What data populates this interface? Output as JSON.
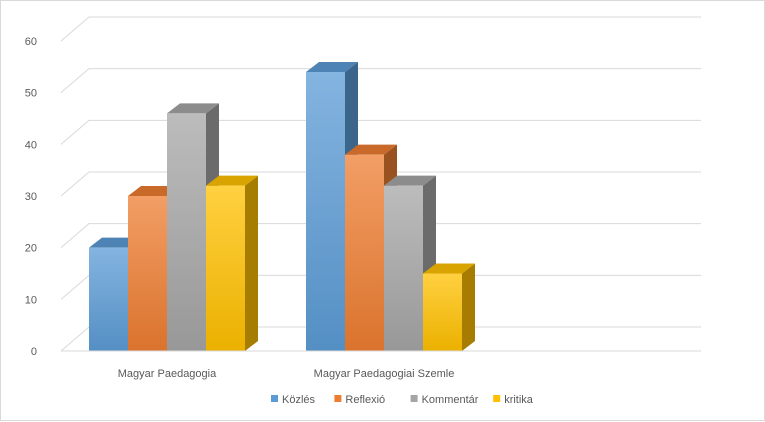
{
  "chart_data": {
    "type": "bar",
    "title": "",
    "xlabel": "",
    "ylabel": "",
    "ylim": [
      0,
      60
    ],
    "yticks": [
      "0",
      "10",
      "20",
      "30",
      "40",
      "50",
      "60"
    ],
    "grid": true,
    "legend_position": "bottom",
    "categories": [
      "Magyar Paedagogia",
      "Magyar Paedagogiai Szemle"
    ],
    "series": [
      {
        "name": "Közlés",
        "values": [
          20,
          54
        ],
        "color": "#5b9bd5"
      },
      {
        "name": "Reflexió",
        "values": [
          30,
          38
        ],
        "color": "#ed7d31"
      },
      {
        "name": "Kommentár",
        "values": [
          46,
          32
        ],
        "color": "#a5a5a5"
      },
      {
        "name": "kritika",
        "values": [
          32,
          15
        ],
        "color": "#ffc000"
      }
    ]
  }
}
